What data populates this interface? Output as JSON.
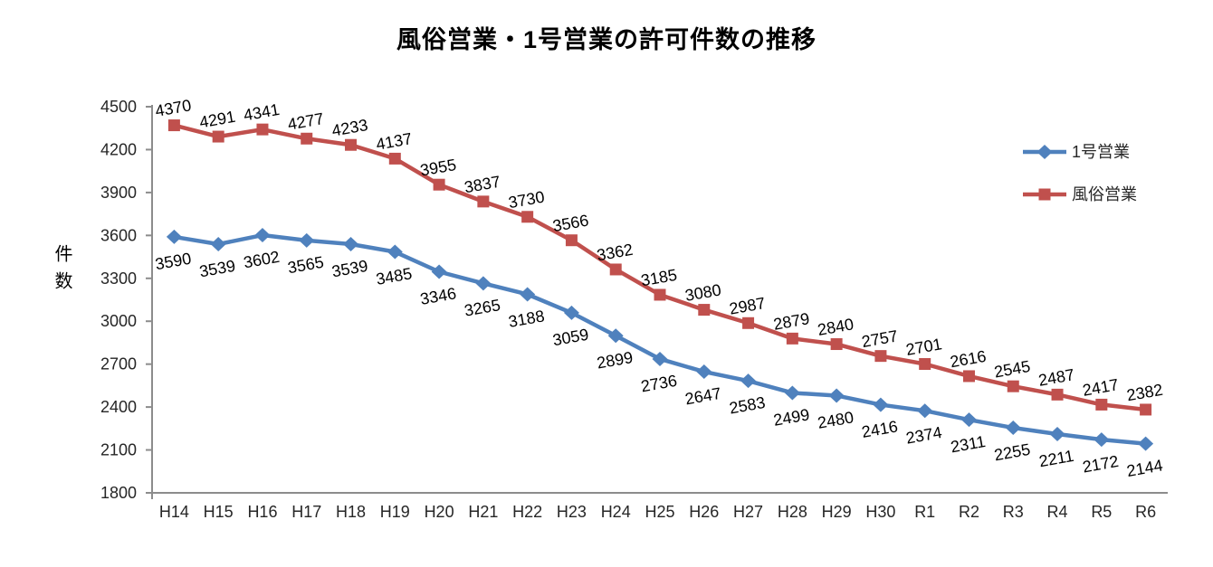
{
  "chart_data": {
    "type": "line",
    "title": "風俗営業・1号営業の許可件数の推移",
    "ylabel": "件数",
    "xlabel": "",
    "categories": [
      "H14",
      "H15",
      "H16",
      "H17",
      "H18",
      "H19",
      "H20",
      "H21",
      "H22",
      "H23",
      "H24",
      "H25",
      "H26",
      "H27",
      "H28",
      "H29",
      "H30",
      "R1",
      "R2",
      "R3",
      "R4",
      "R5",
      "R6"
    ],
    "series": [
      {
        "name": "1号営業",
        "color": "#4F81BD",
        "marker": "diamond",
        "label_position": "below",
        "values": [
          3590,
          3539,
          3602,
          3565,
          3539,
          3485,
          3346,
          3265,
          3188,
          3059,
          2899,
          2736,
          2647,
          2583,
          2499,
          2480,
          2416,
          2374,
          2311,
          2255,
          2211,
          2172,
          2144
        ]
      },
      {
        "name": "風俗営業",
        "color": "#C0504D",
        "marker": "square",
        "label_position": "above",
        "values": [
          4370,
          4291,
          4341,
          4277,
          4233,
          4137,
          3955,
          3837,
          3730,
          3566,
          3362,
          3185,
          3080,
          2987,
          2879,
          2840,
          2757,
          2701,
          2616,
          2545,
          2487,
          2417,
          2382
        ]
      }
    ],
    "ylim": [
      1800,
      4500
    ],
    "ytick_step": 300,
    "yticks": [
      1800,
      2100,
      2400,
      2700,
      3000,
      3300,
      3600,
      3900,
      4200,
      4500
    ],
    "grid": false,
    "legend_position": "right",
    "data_labels": true,
    "data_label_rotation_deg": -10,
    "axis_color": "#8C8C8C",
    "tick_label_color": "#262626",
    "data_label_color": "#000000"
  }
}
